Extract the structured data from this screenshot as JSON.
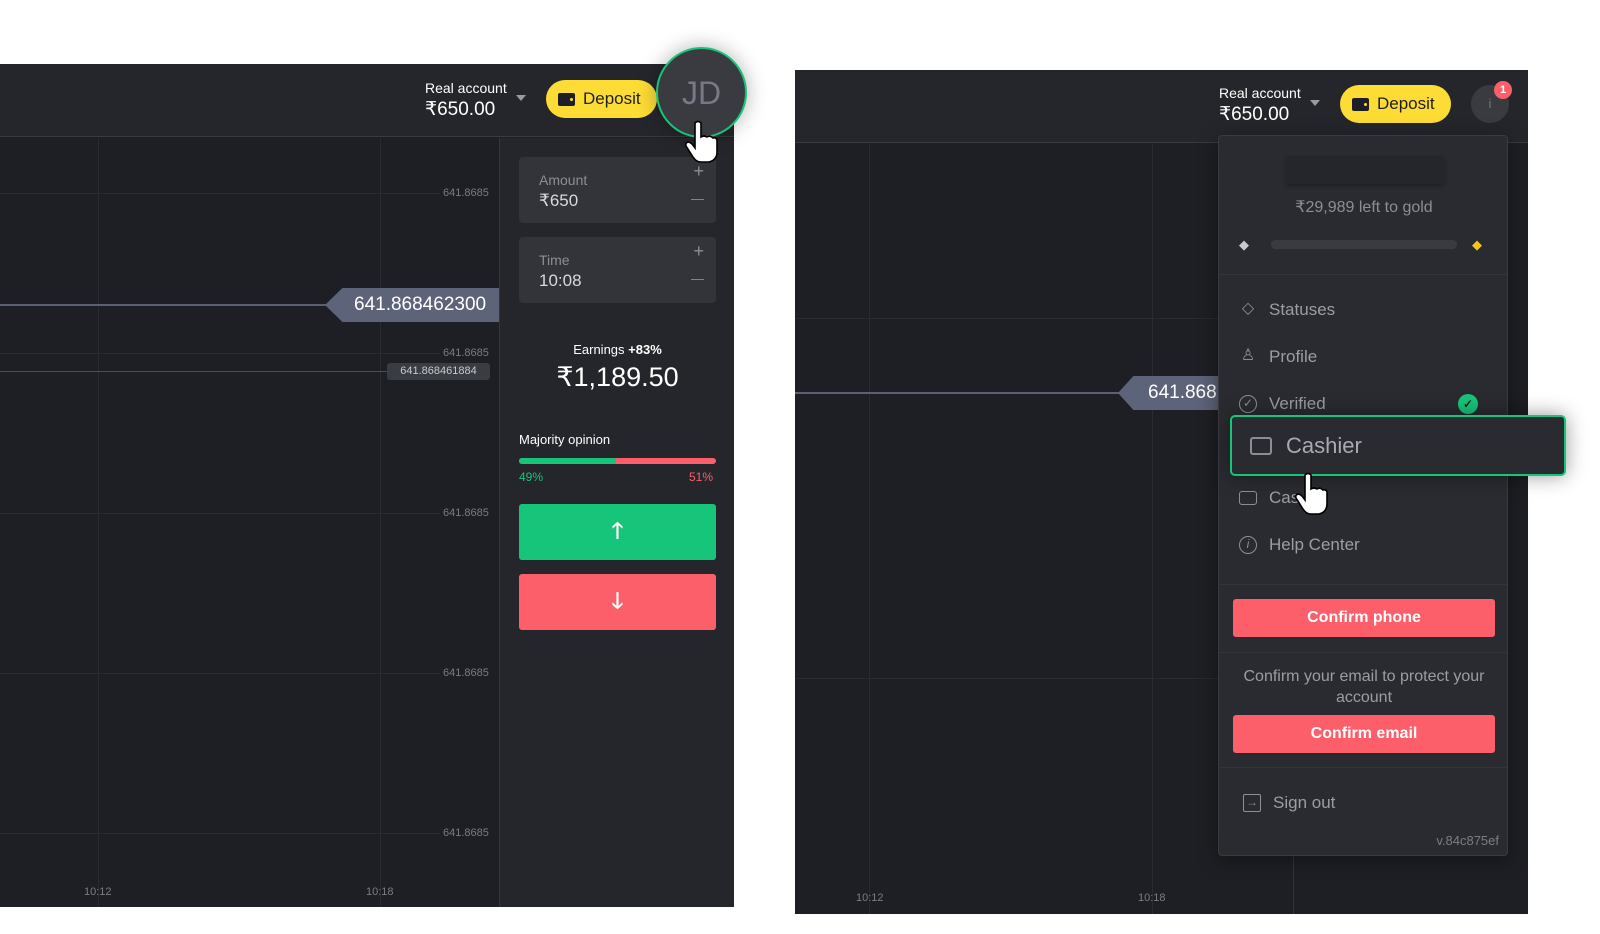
{
  "left": {
    "header": {
      "account_label": "Real account",
      "balance": "₹650.00",
      "deposit_label": "Deposit",
      "avatar_initials": "JD"
    },
    "chart": {
      "y_ticks": [
        "641.8685",
        "641.8685",
        "641.8685",
        "641.8685",
        "641.8685"
      ],
      "x_ticks": [
        "10:12",
        "10:18"
      ],
      "current_price": "641.868462300",
      "secondary_price": "641.868461884"
    },
    "trade": {
      "amount_label": "Amount",
      "amount_value": "₹650",
      "time_label": "Time",
      "time_value": "10:08",
      "plus": "+",
      "minus": "—",
      "earnings_label": "Earnings",
      "earnings_pct": "+83%",
      "earnings_value": "₹1,189.50",
      "majority_label": "Majority opinion",
      "up_pct": "49%",
      "down_pct": "51%",
      "up_fraction": 0.49,
      "up_icon": "arrow-up-icon",
      "down_icon": "arrow-down-icon",
      "up_color": "#17c57a",
      "down_color": "#fc5f6a"
    }
  },
  "right": {
    "header": {
      "account_label": "Real account",
      "balance": "₹650.00",
      "deposit_label": "Deposit",
      "avatar_initials": "i",
      "notification_count": "1"
    },
    "chart": {
      "x_ticks": [
        "10:12",
        "10:18"
      ],
      "current_price": "641.868"
    },
    "menu": {
      "gold_text": "₹29,989 left to gold",
      "gold_progress": 0,
      "items": [
        {
          "label": "Statuses",
          "icon": "diamond-icon"
        },
        {
          "label": "Profile",
          "icon": "user-icon"
        },
        {
          "label": "Verified",
          "icon": "check-circle-icon"
        },
        {
          "label": "Cashier",
          "icon": "wallet-icon"
        },
        {
          "label": "Cas",
          "icon": "wallet-icon"
        },
        {
          "label": "Help Center",
          "icon": "info-icon"
        }
      ],
      "confirm_phone": "Confirm phone",
      "email_text": "Confirm your email to protect your account",
      "confirm_email": "Confirm email",
      "sign_out": "Sign out",
      "version": "v.84c875ef"
    }
  },
  "colors": {
    "accent_green": "#17c57a",
    "deposit_yellow": "#fddc35",
    "danger_red": "#fc5f6a"
  }
}
